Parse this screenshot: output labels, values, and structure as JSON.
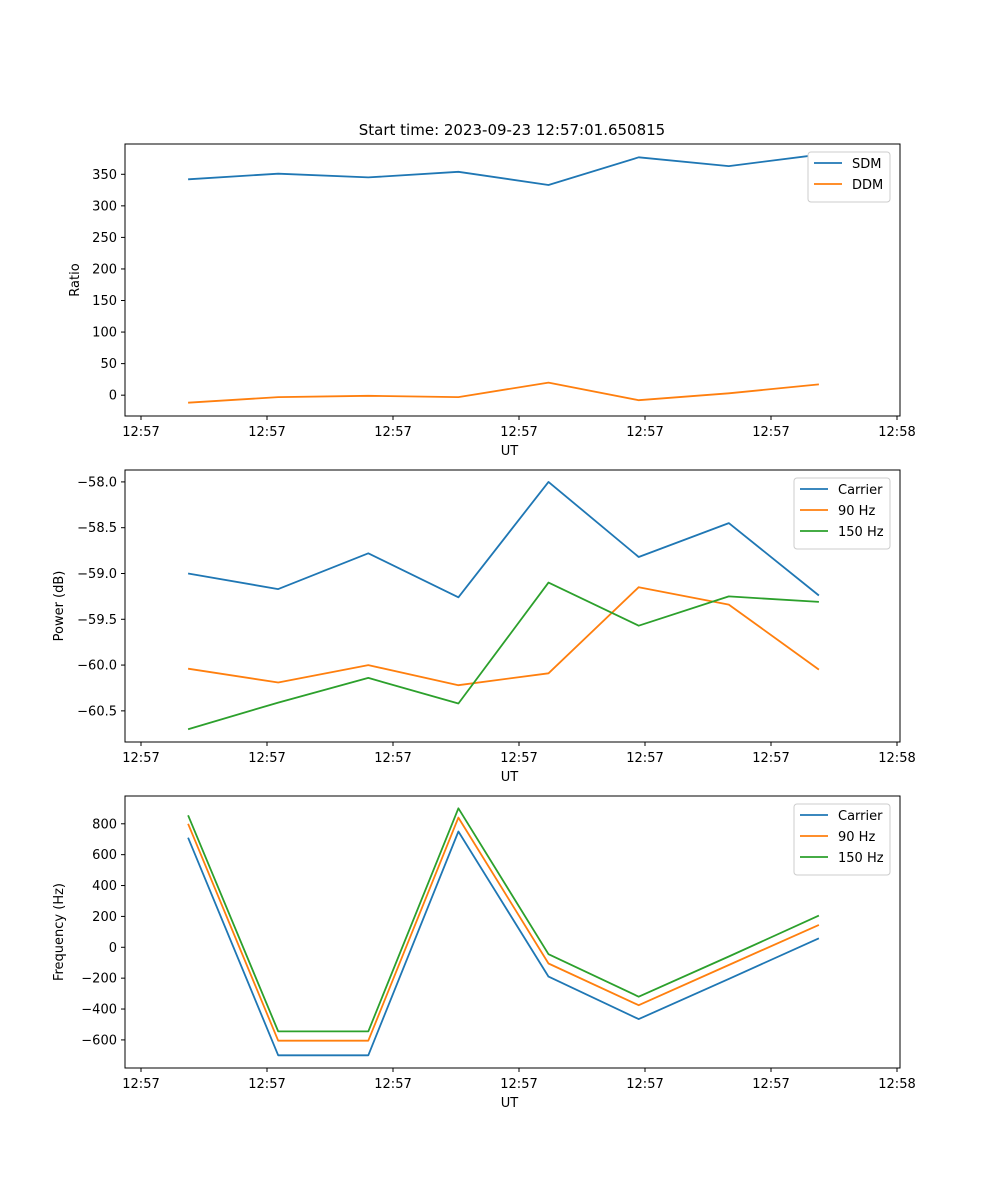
{
  "figure": {
    "title": "Start time: 2023-09-23 12:57:01.650815"
  },
  "chart_data": [
    {
      "type": "line",
      "xlabel": "UT",
      "ylabel": "Ratio",
      "x_tick_labels": [
        "12:57",
        "12:57",
        "12:57",
        "12:57",
        "12:57",
        "12:57",
        "12:58"
      ],
      "y_ticks": [
        0,
        50,
        100,
        150,
        200,
        250,
        300,
        350
      ],
      "ylim": [
        -33,
        398
      ],
      "xlim": [
        -0.1,
        8.5
      ],
      "x": [
        0.6,
        1.6,
        2.6,
        3.6,
        4.6,
        5.6,
        6.6,
        7.6
      ],
      "legend": "top-right",
      "series": [
        {
          "name": "SDM",
          "color": "#1f77b4",
          "values": [
            342,
            351,
            345,
            354,
            333,
            377,
            363,
            381
          ]
        },
        {
          "name": "DDM",
          "color": "#ff7f0e",
          "values": [
            -12,
            -3,
            -1,
            -3,
            20,
            -8,
            3,
            17
          ]
        }
      ]
    },
    {
      "type": "line",
      "xlabel": "UT",
      "ylabel": "Power (dB)",
      "x_tick_labels": [
        "12:57",
        "12:57",
        "12:57",
        "12:57",
        "12:57",
        "12:57",
        "12:58"
      ],
      "y_ticks": [
        -60.5,
        -60.0,
        -59.5,
        -59.0,
        -58.5,
        -58.0
      ],
      "y_tick_labels": [
        "−60.5",
        "−60.0",
        "−59.5",
        "−59.0",
        "−58.5",
        "−58.0"
      ],
      "ylim": [
        -60.84,
        -57.87
      ],
      "xlim": [
        -0.1,
        8.5
      ],
      "x": [
        0.6,
        1.6,
        2.6,
        3.6,
        4.6,
        5.6,
        6.6,
        7.6
      ],
      "legend": "top-right",
      "series": [
        {
          "name": "Carrier",
          "color": "#1f77b4",
          "values": [
            -59.0,
            -59.17,
            -58.78,
            -59.26,
            -58.0,
            -58.82,
            -58.45,
            -59.24
          ]
        },
        {
          "name": "90 Hz",
          "color": "#ff7f0e",
          "values": [
            -60.04,
            -60.19,
            -60.0,
            -60.22,
            -60.09,
            -59.15,
            -59.34,
            -60.05
          ]
        },
        {
          "name": "150 Hz",
          "color": "#2ca02c",
          "values": [
            -60.7,
            -60.41,
            -60.14,
            -60.42,
            -59.1,
            -59.57,
            -59.25,
            -59.31
          ]
        }
      ]
    },
    {
      "type": "line",
      "xlabel": "UT",
      "ylabel": "Frequency (Hz)",
      "x_tick_labels": [
        "12:57",
        "12:57",
        "12:57",
        "12:57",
        "12:57",
        "12:57",
        "12:58"
      ],
      "y_ticks": [
        -600,
        -400,
        -200,
        0,
        200,
        400,
        600,
        800
      ],
      "y_tick_labels": [
        "−600",
        "−400",
        "−200",
        "0",
        "200",
        "400",
        "600",
        "800"
      ],
      "ylim": [
        -782,
        980
      ],
      "xlim": [
        -0.1,
        8.5
      ],
      "x": [
        0.6,
        1.6,
        2.6,
        3.6,
        4.6,
        5.6,
        6.6,
        7.6
      ],
      "legend": "top-right",
      "series": [
        {
          "name": "Carrier",
          "color": "#1f77b4",
          "values": [
            710,
            -700,
            -700,
            750,
            -190,
            -465,
            -205,
            58
          ]
        },
        {
          "name": "90 Hz",
          "color": "#ff7f0e",
          "values": [
            800,
            -605,
            -605,
            840,
            -105,
            -375,
            -115,
            145
          ]
        },
        {
          "name": "150 Hz",
          "color": "#2ca02c",
          "values": [
            855,
            -545,
            -545,
            900,
            -45,
            -320,
            -60,
            205
          ]
        }
      ]
    }
  ]
}
